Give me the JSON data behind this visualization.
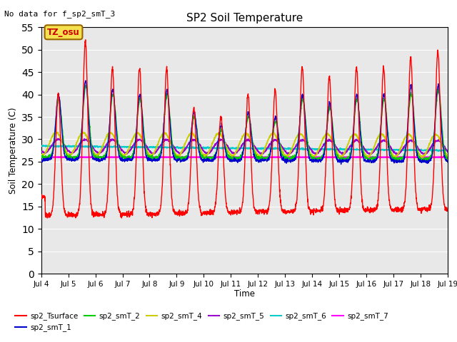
{
  "title": "SP2 Soil Temperature",
  "ylabel": "Soil Temperature (C)",
  "xlabel": "Time",
  "note": "No data for f_sp2_smT_3",
  "tz_label": "TZ_osu",
  "ylim": [
    0,
    55
  ],
  "yticks": [
    0,
    5,
    10,
    15,
    20,
    25,
    30,
    35,
    40,
    45,
    50,
    55
  ],
  "bg_color": "#e8e8e8",
  "series_colors": {
    "sp2_Tsurface": "#ff0000",
    "sp2_smT_1": "#0000cc",
    "sp2_smT_2": "#00cc00",
    "sp2_smT_4": "#cccc00",
    "sp2_smT_5": "#9900cc",
    "sp2_smT_6": "#00cccc",
    "sp2_smT_7": "#ff00ff"
  },
  "legend_order": [
    "sp2_Tsurface",
    "sp2_smT_1",
    "sp2_smT_2",
    "sp2_smT_4",
    "sp2_smT_5",
    "sp2_smT_6",
    "sp2_smT_7"
  ]
}
